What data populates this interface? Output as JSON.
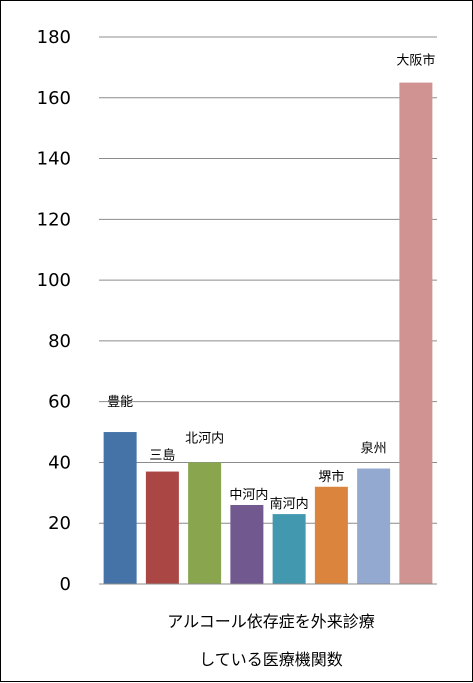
{
  "chart_data": {
    "type": "bar",
    "categories": [
      "豊能",
      "三島",
      "北河内",
      "中河内",
      "南河内",
      "堺市",
      "泉州",
      "大阪市"
    ],
    "values": [
      50,
      37,
      40,
      26,
      23,
      32,
      38,
      165
    ],
    "colors": [
      "#4572a7",
      "#aa4643",
      "#89a54e",
      "#71588f",
      "#4198af",
      "#db843d",
      "#93a9cf",
      "#d19392"
    ],
    "ylim": [
      0,
      180
    ],
    "yticks": [
      0,
      20,
      40,
      60,
      80,
      100,
      120,
      140,
      160,
      180
    ],
    "grid": true,
    "legend": "none",
    "caption_lines": [
      "アルコール依存症を外来診療",
      "している医療機関数"
    ]
  }
}
